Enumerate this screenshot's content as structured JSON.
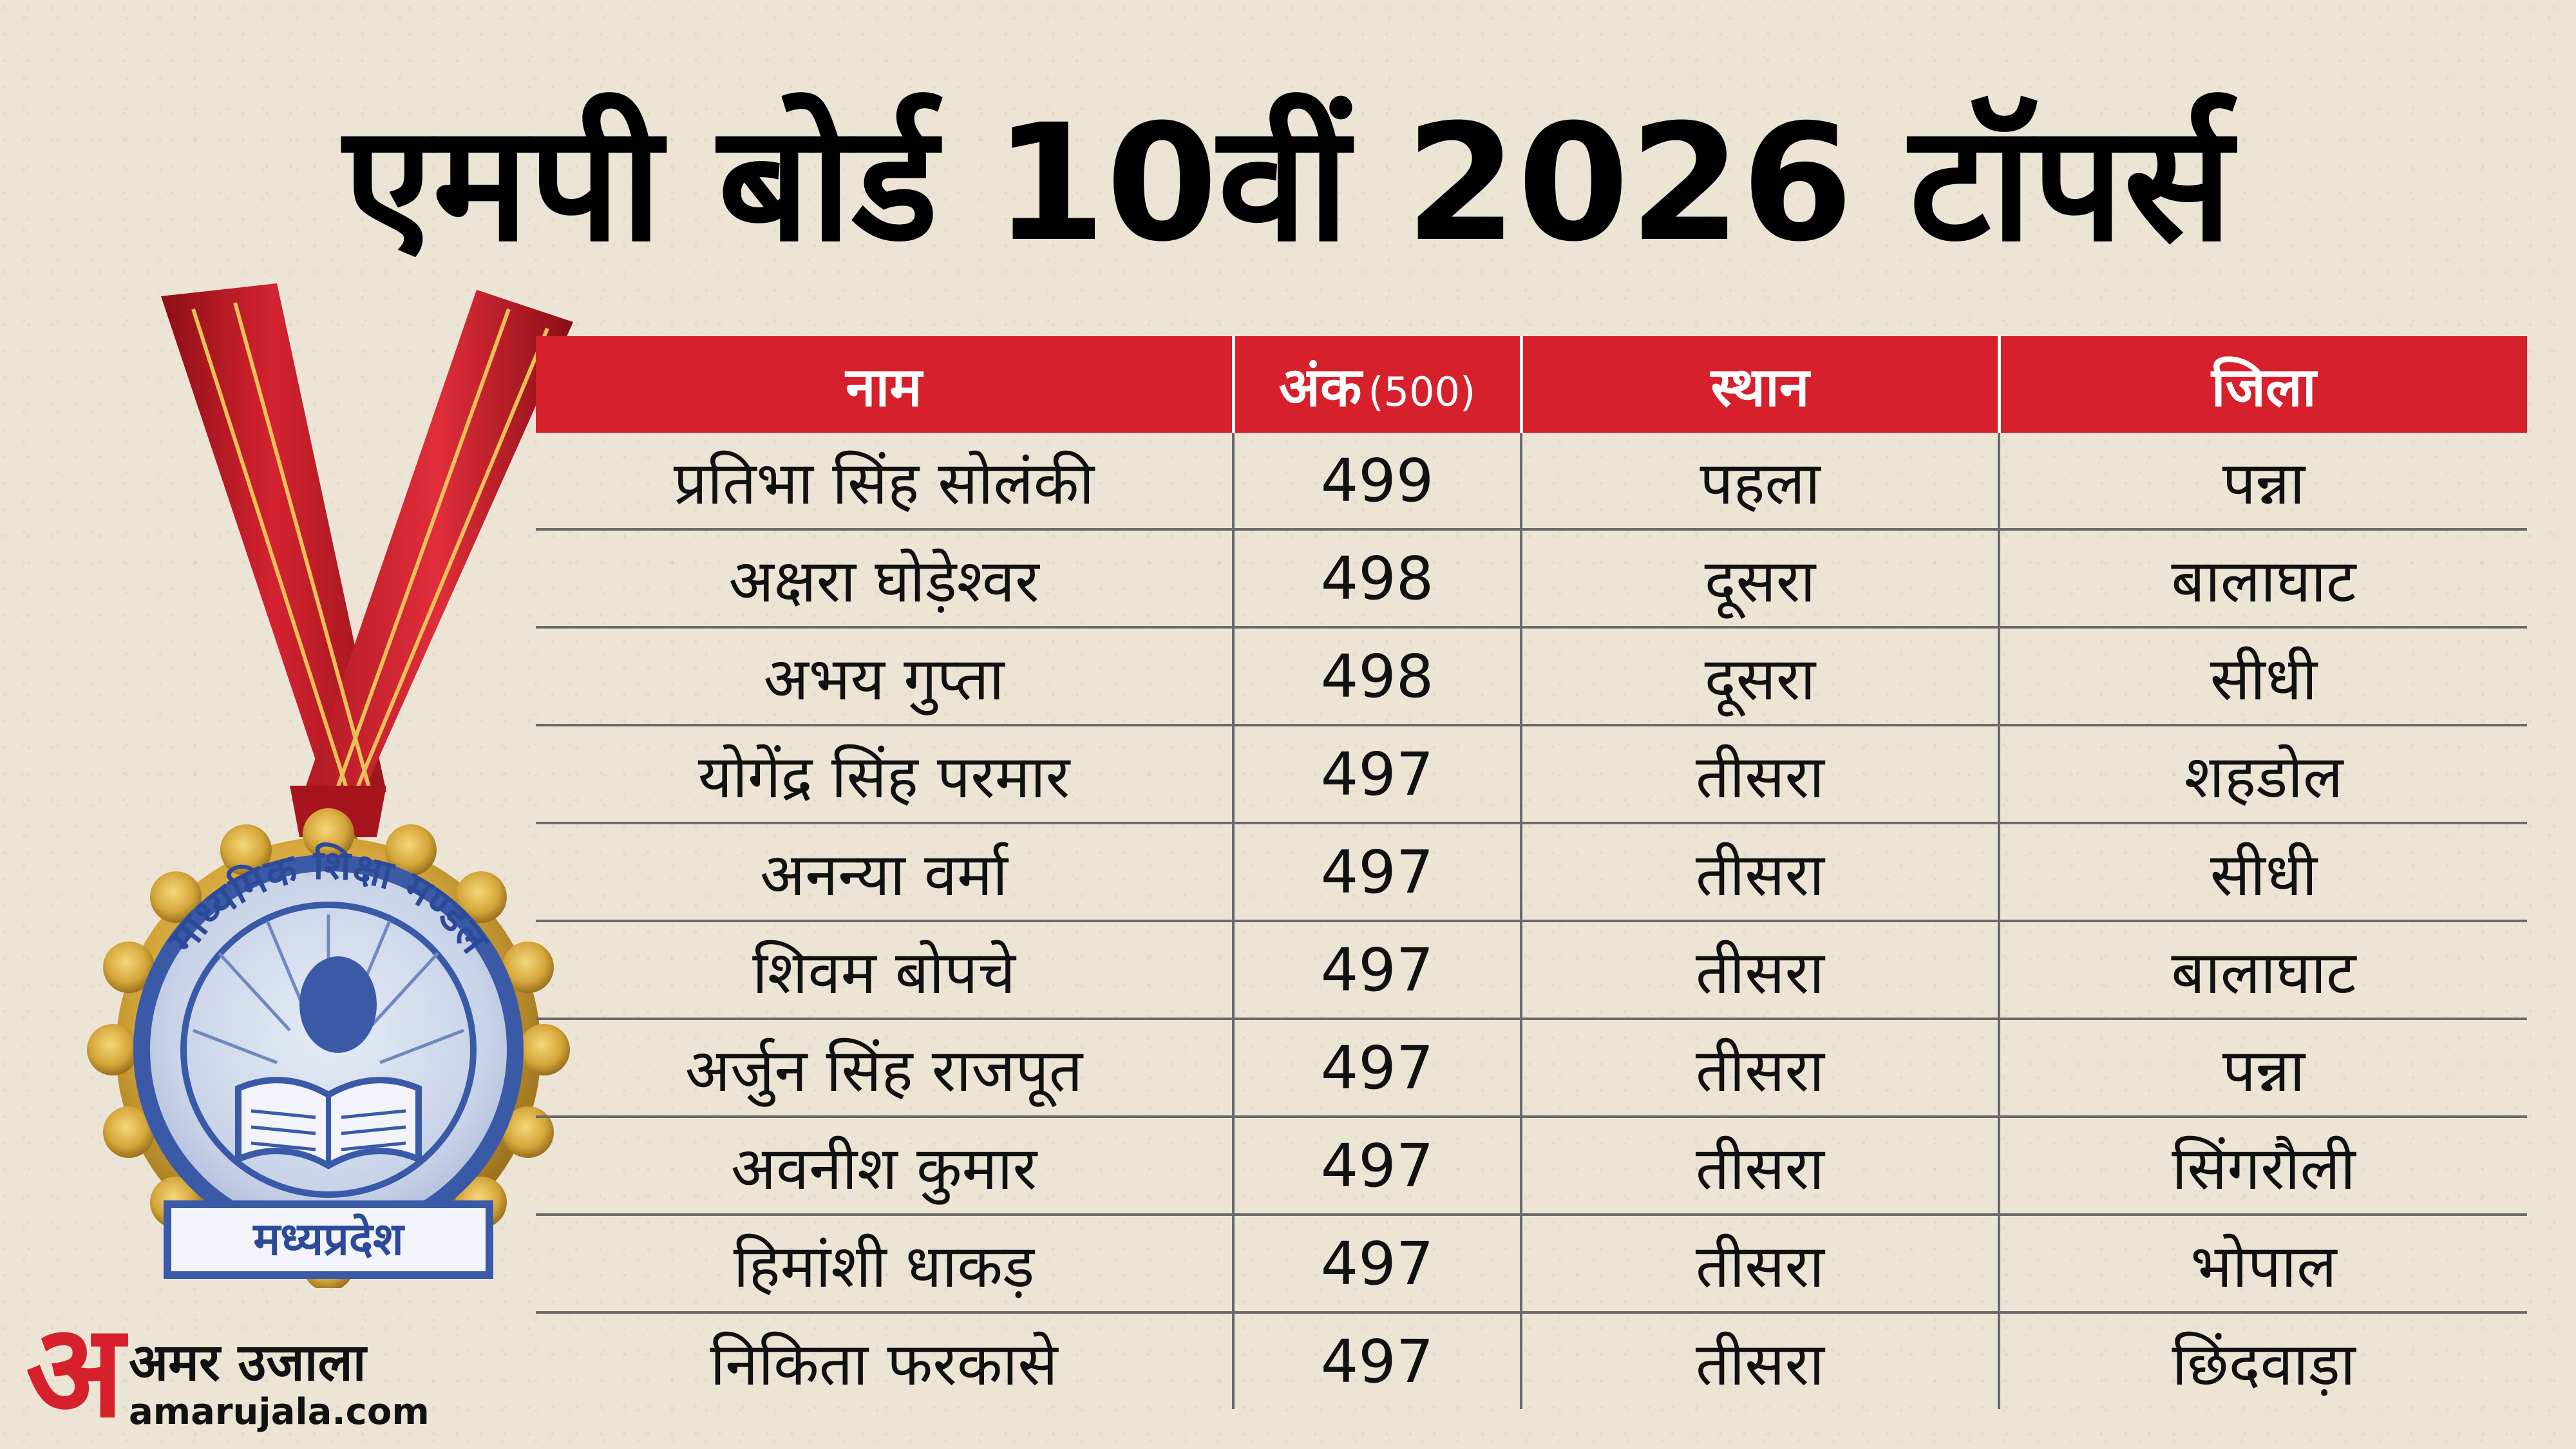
{
  "title": "एमपी बोर्ड 10वीं 2026 टॉपर्स",
  "table": {
    "headers": {
      "name": "नाम",
      "marks": "अंक",
      "marks_total": "(500)",
      "rank": "स्थान",
      "district": "जिला"
    },
    "rows": [
      {
        "name": "प्रतिभा सिंह सोलंकी",
        "marks": "499",
        "rank": "पहला",
        "district": "पन्ना"
      },
      {
        "name": "अक्षरा घोड़ेश्वर",
        "marks": "498",
        "rank": "दूसरा",
        "district": "बालाघाट"
      },
      {
        "name": "अभय गुप्ता",
        "marks": "498",
        "rank": "दूसरा",
        "district": "सीधी"
      },
      {
        "name": "योगेंद्र सिंह परमार",
        "marks": "497",
        "rank": "तीसरा",
        "district": "शहडोल"
      },
      {
        "name": "अनन्या वर्मा",
        "marks": "497",
        "rank": "तीसरा",
        "district": "सीधी"
      },
      {
        "name": "शिवम बोपचे",
        "marks": "497",
        "rank": "तीसरा",
        "district": "बालाघाट"
      },
      {
        "name": "अर्जुन सिंह राजपूत",
        "marks": "497",
        "rank": "तीसरा",
        "district": "पन्ना"
      },
      {
        "name": "अवनीश कुमार",
        "marks": "497",
        "rank": "तीसरा",
        "district": "सिंगरौली"
      },
      {
        "name": "हिमांशी धाकड़",
        "marks": "497",
        "rank": "तीसरा",
        "district": "भोपाल"
      },
      {
        "name": "निकिता फरकासे",
        "marks": "497",
        "rank": "तीसरा",
        "district": "छिंदवाड़ा"
      }
    ]
  },
  "medal": {
    "seal_text_top": "माध्यमिक शिक्षा मण्डल",
    "seal_text_bottom": "मध्यप्रदेश"
  },
  "logo": {
    "mark": "अ",
    "name": "अमर उजाला",
    "url": "amarujala.com"
  },
  "colors": {
    "accent_red": "#d6202c",
    "background": "#ece5d6",
    "seal_blue": "#3a5aa8",
    "gold": "#d4a63a"
  }
}
